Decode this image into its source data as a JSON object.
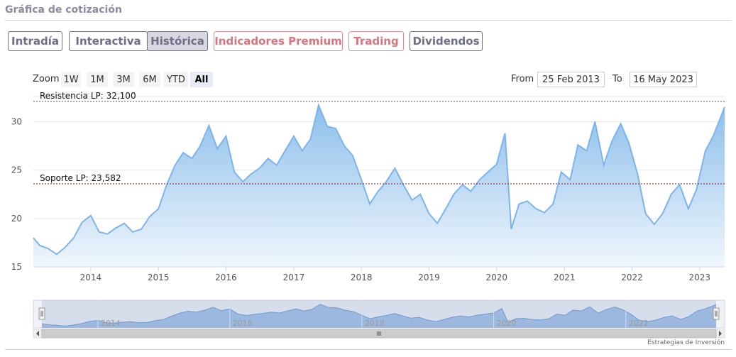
{
  "page": {
    "title": "Gráfica de cotización"
  },
  "tabs": [
    {
      "label": "Intradía",
      "premium": false,
      "active": false
    },
    {
      "label": "Interactiva",
      "premium": false,
      "active": false
    },
    {
      "label": "Histórica",
      "premium": false,
      "active": true
    },
    {
      "label": "Indicadores Premium",
      "premium": true,
      "active": false
    },
    {
      "label": "Trading",
      "premium": true,
      "active": false
    },
    {
      "label": "Dividendos",
      "premium": false,
      "active": false
    }
  ],
  "zoom": {
    "label": "Zoom",
    "buttons": [
      "1W",
      "1M",
      "3M",
      "6M",
      "YTD",
      "All"
    ],
    "selected": "All"
  },
  "range": {
    "from_label": "From",
    "from": "25 Feb 2013",
    "to_label": "To",
    "to": "16 May 2023"
  },
  "footer": {
    "credit": "Estrategias de Inversión"
  },
  "chart_data": {
    "type": "area",
    "title": "",
    "xlabel": "",
    "ylabel": "",
    "ylim": [
      15,
      32.6
    ],
    "xlim": [
      "2013-02-25",
      "2023-05-16"
    ],
    "y_ticks": [
      15,
      20,
      25,
      30
    ],
    "x_ticks": [
      "2014",
      "2015",
      "2016",
      "2017",
      "2018",
      "2019",
      "2020",
      "2021",
      "2022",
      "2023"
    ],
    "grid": true,
    "legend": "none",
    "colors": {
      "line": "#7cb5ec",
      "fill_top": "#8dbfeb",
      "fill_bottom": "#f0f6fc",
      "resistance": "#555555",
      "support": "#8b1a1a"
    },
    "annotations": [
      {
        "label": "Resistencia LP: 32,100",
        "value": 32.1,
        "style": "dashed"
      },
      {
        "label": "Soporte LP: 23,582",
        "value": 23.582,
        "style": "dashed"
      }
    ],
    "x": [
      "2013-02-25",
      "2013-04-01",
      "2013-05-15",
      "2013-07-01",
      "2013-08-15",
      "2013-10-01",
      "2013-11-15",
      "2014-01-01",
      "2014-02-15",
      "2014-04-01",
      "2014-05-15",
      "2014-07-01",
      "2014-08-15",
      "2014-10-01",
      "2014-11-15",
      "2015-01-01",
      "2015-02-15",
      "2015-04-01",
      "2015-05-15",
      "2015-07-01",
      "2015-08-15",
      "2015-10-01",
      "2015-11-15",
      "2016-01-01",
      "2016-02-15",
      "2016-04-01",
      "2016-05-15",
      "2016-07-01",
      "2016-08-15",
      "2016-10-01",
      "2016-11-15",
      "2017-01-01",
      "2017-02-15",
      "2017-04-01",
      "2017-05-15",
      "2017-07-01",
      "2017-08-15",
      "2017-10-01",
      "2017-11-15",
      "2018-01-01",
      "2018-02-15",
      "2018-04-01",
      "2018-05-15",
      "2018-07-01",
      "2018-08-15",
      "2018-10-01",
      "2018-11-15",
      "2019-01-01",
      "2019-02-15",
      "2019-04-01",
      "2019-05-15",
      "2019-07-01",
      "2019-08-15",
      "2019-10-01",
      "2019-11-15",
      "2020-01-01",
      "2020-02-15",
      "2020-03-20",
      "2020-05-01",
      "2020-06-15",
      "2020-08-01",
      "2020-09-15",
      "2020-11-01",
      "2020-12-15",
      "2021-02-01",
      "2021-03-15",
      "2021-05-01",
      "2021-06-15",
      "2021-08-01",
      "2021-09-15",
      "2021-11-01",
      "2021-12-15",
      "2022-02-01",
      "2022-03-15",
      "2022-05-01",
      "2022-06-15",
      "2022-08-01",
      "2022-09-15",
      "2022-11-01",
      "2022-12-15",
      "2023-02-01",
      "2023-03-15",
      "2023-05-16"
    ],
    "series": [
      {
        "values": [
          18.0,
          17.2,
          16.9,
          16.3,
          17.0,
          18.0,
          19.6,
          20.3,
          18.6,
          18.4,
          19.0,
          19.5,
          18.6,
          18.9,
          20.2,
          21.0,
          23.5,
          25.5,
          26.8,
          26.2,
          27.5,
          29.6,
          27.2,
          28.5,
          24.8,
          23.8,
          24.6,
          25.2,
          26.2,
          25.5,
          27.0,
          28.5,
          27.0,
          28.2,
          31.7,
          29.5,
          29.3,
          27.5,
          26.5,
          24.0,
          21.5,
          22.8,
          23.8,
          25.2,
          23.5,
          21.9,
          22.5,
          20.5,
          19.5,
          21.0,
          22.5,
          23.5,
          22.8,
          24.0,
          24.8,
          25.6,
          28.8,
          18.9,
          21.5,
          21.8,
          21.0,
          20.6,
          21.5,
          24.8,
          24.0,
          27.6,
          27.0,
          30.0,
          25.5,
          28.0,
          29.8,
          27.8,
          24.5,
          20.5,
          19.4,
          20.5,
          22.5,
          23.5,
          21.0,
          23.0,
          27.0,
          28.5,
          31.5
        ]
      }
    ]
  }
}
